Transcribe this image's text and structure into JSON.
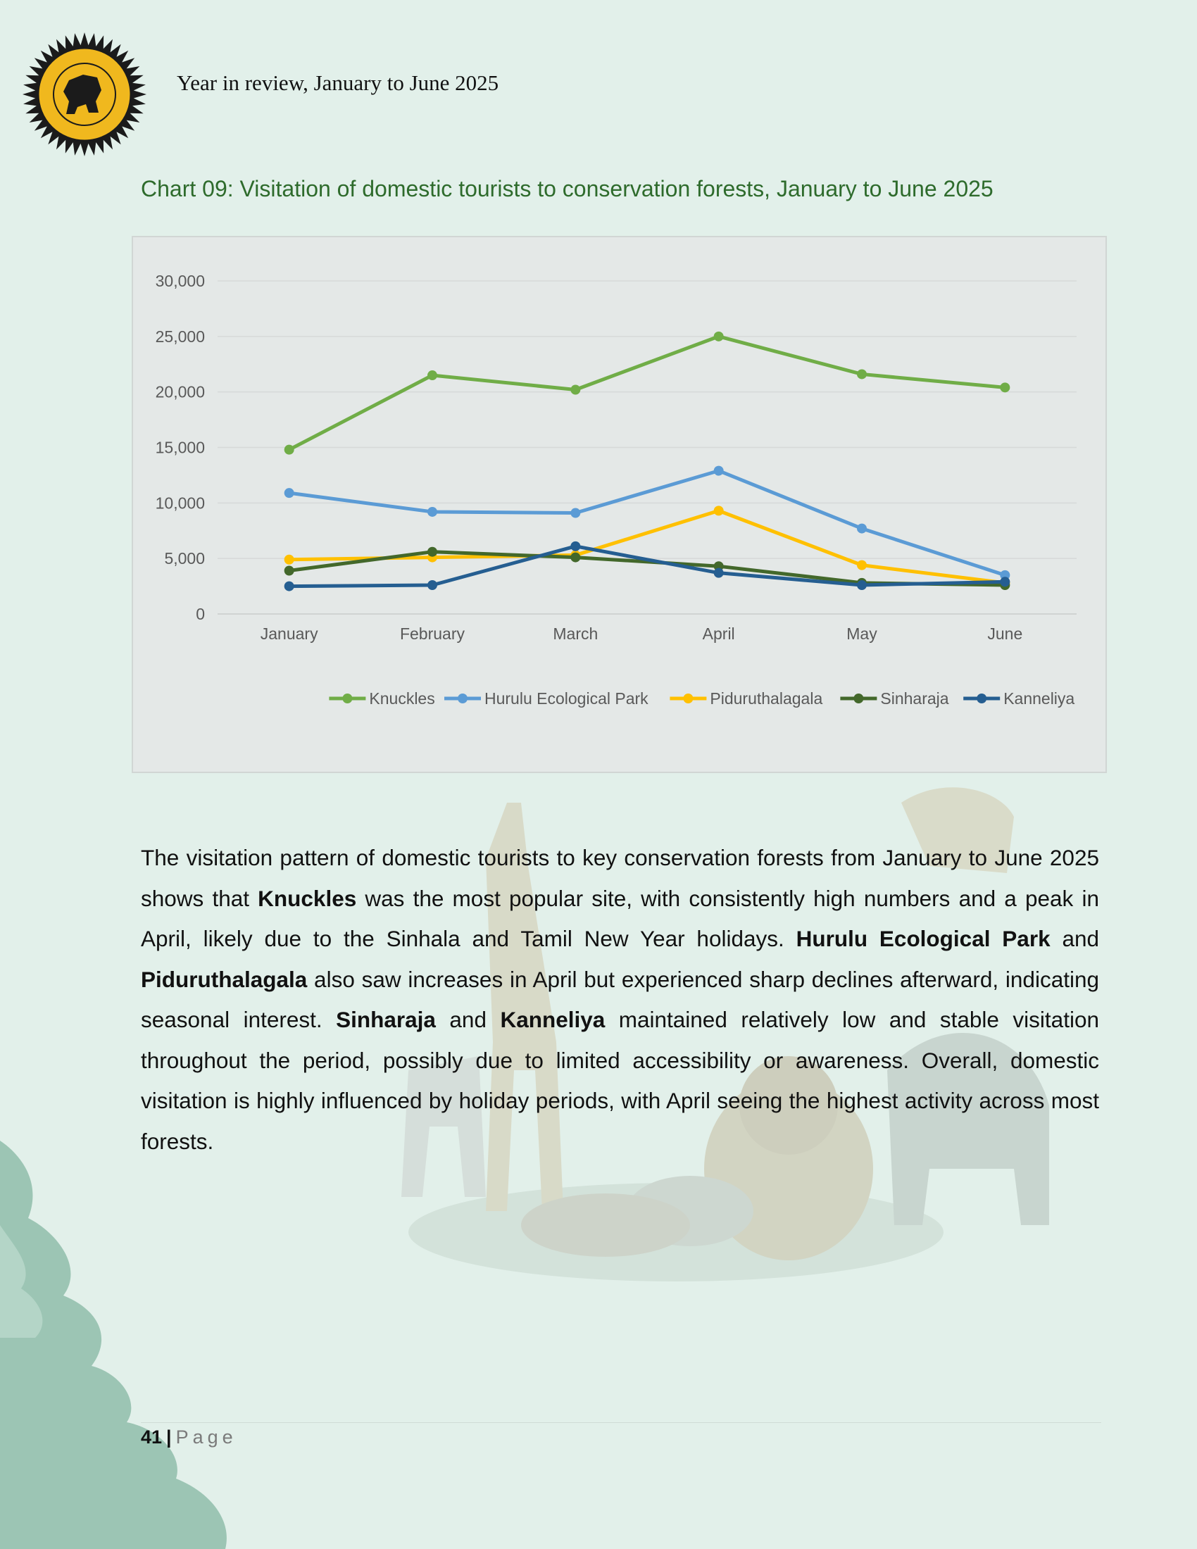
{
  "header": {
    "title": "Year in review, January to June 2025",
    "logo_icon": "sri-lanka-tourism-development-authority-seal"
  },
  "chart_title": "Chart 09: Visitation of domestic tourists to conservation forests, January to June 2025",
  "chart_data": {
    "type": "line",
    "title": "",
    "xlabel": "",
    "ylabel": "",
    "categories": [
      "January",
      "February",
      "March",
      "April",
      "May",
      "June"
    ],
    "ylim": [
      0,
      30000
    ],
    "yticks": [
      0,
      5000,
      10000,
      15000,
      20000,
      25000,
      30000
    ],
    "ytick_labels": [
      "0",
      "5,000",
      "10,000",
      "15,000",
      "20,000",
      "25,000",
      "30,000"
    ],
    "grid": true,
    "legend_position": "bottom-right",
    "series": [
      {
        "name": "Knuckles",
        "color": "#70ad47",
        "values": [
          14800,
          21500,
          20200,
          25000,
          21600,
          20400
        ]
      },
      {
        "name": "Hurulu Ecological Park",
        "color": "#5b9bd5",
        "values": [
          10900,
          9200,
          9100,
          12900,
          7700,
          3500
        ]
      },
      {
        "name": "Piduruthalagala",
        "color": "#ffc000",
        "values": [
          4900,
          5100,
          5300,
          9300,
          4400,
          2800
        ]
      },
      {
        "name": "Sinharaja",
        "color": "#43682b",
        "values": [
          3900,
          5600,
          5100,
          4300,
          2800,
          2600
        ]
      },
      {
        "name": "Kanneliya",
        "color": "#255e91",
        "values": [
          2500,
          2600,
          6100,
          3700,
          2600,
          2900
        ]
      }
    ]
  },
  "body": {
    "s1": "The visitation pattern of domestic tourists to key conservation forests from January to June 2025 shows that ",
    "b1": "Knuckles",
    "s2": " was the most popular site, with consistently high numbers and a peak in April, likely due to the Sinhala and Tamil New Year holidays. ",
    "b2": "Hurulu Ecological Park",
    "s3": " and ",
    "b3": "Piduruthalagala",
    "s4": " also saw increases in April but experienced sharp declines afterward, indicating seasonal interest. ",
    "b4": "Sinharaja",
    "s5": " and ",
    "b5": "Kanneliya",
    "s6": " maintained relatively low and stable visitation throughout the period, possibly due to limited accessibility or awareness. Overall, domestic visitation is highly influenced by holiday periods, with April seeing the highest activity across most forests."
  },
  "footer": {
    "page_number": "41",
    "separator": "|",
    "page_word": "Page"
  }
}
